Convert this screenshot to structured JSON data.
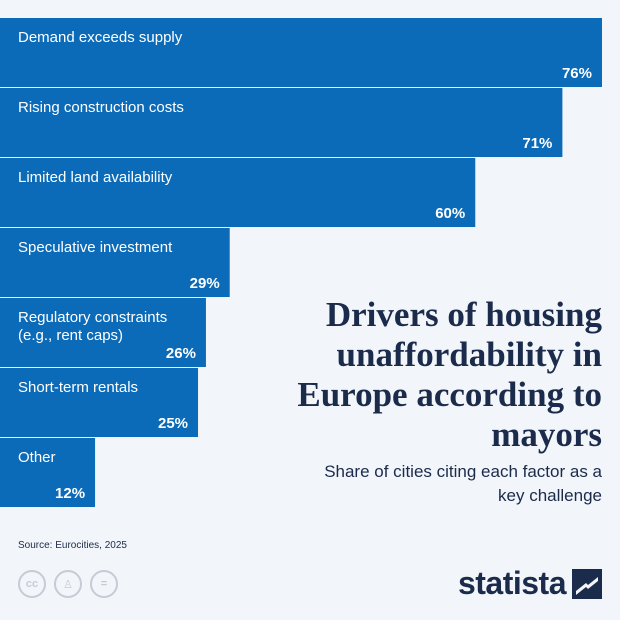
{
  "chart_data": {
    "type": "bar",
    "orientation": "horizontal",
    "categories": [
      "Demand exceeds supply",
      "Rising construction costs",
      "Limited land availability",
      "Speculative investment",
      "Regulatory constraints (e.g., rent caps)",
      "Short-term rentals",
      "Other"
    ],
    "category_lines": [
      [
        "Demand exceeds supply"
      ],
      [
        "Rising construction costs"
      ],
      [
        "Limited land availability"
      ],
      [
        "Speculative investment"
      ],
      [
        "Regulatory constraints",
        "(e.g., rent caps)"
      ],
      [
        "Short-term rentals"
      ],
      [
        "Other"
      ]
    ],
    "values": [
      76,
      71,
      60,
      29,
      26,
      25,
      12
    ],
    "value_labels": [
      "76%",
      "71%",
      "60%",
      "29%",
      "26%",
      "25%",
      "12%"
    ],
    "title": "Drivers of housing unaffordability in Europe according to mayors",
    "subtitle": "Share of cities citing each factor as a key challenge",
    "unit": "%",
    "bar_color": "#0b6bb8"
  },
  "source": "Source: Eurocities, 2025",
  "license_icons": [
    "cc-icon",
    "person-icon",
    "equals-icon"
  ],
  "license_glyphs": [
    "cc",
    "♙",
    "="
  ],
  "logo": {
    "text": "statista"
  }
}
